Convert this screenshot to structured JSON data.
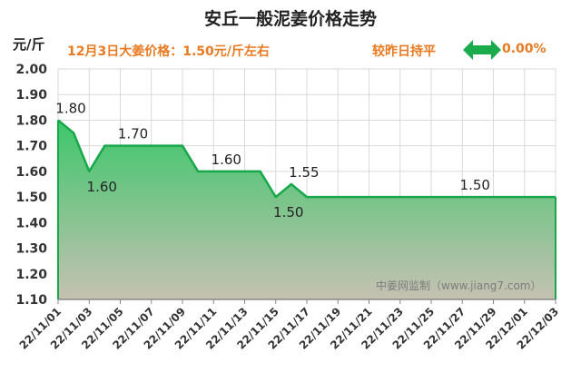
{
  "chart_data": {
    "type": "area",
    "title": "安丘一般泥姜价格走势",
    "ylabel": "元/斤",
    "ylim": [
      1.1,
      2.0
    ],
    "yticks": [
      1.1,
      1.2,
      1.3,
      1.4,
      1.5,
      1.6,
      1.7,
      1.8,
      1.9,
      2.0
    ],
    "xticks": [
      "22/11/01",
      "22/11/03",
      "22/11/05",
      "22/11/07",
      "22/11/09",
      "22/11/11",
      "22/11/13",
      "22/11/15",
      "22/11/17",
      "22/11/19",
      "22/11/21",
      "22/11/23",
      "22/11/25",
      "22/11/27",
      "22/11/29",
      "22/12/01",
      "22/12/03"
    ],
    "x": [
      "22/11/01",
      "22/11/02",
      "22/11/03",
      "22/11/04",
      "22/11/05",
      "22/11/06",
      "22/11/07",
      "22/11/08",
      "22/11/09",
      "22/11/10",
      "22/11/11",
      "22/11/12",
      "22/11/13",
      "22/11/14",
      "22/11/15",
      "22/11/16",
      "22/11/17",
      "22/11/18",
      "22/11/19",
      "22/11/20",
      "22/11/21",
      "22/11/22",
      "22/11/23",
      "22/11/24",
      "22/11/25",
      "22/11/26",
      "22/11/27",
      "22/11/28",
      "22/11/29",
      "22/11/30",
      "22/12/01",
      "22/12/02",
      "22/12/03"
    ],
    "values": [
      1.8,
      1.75,
      1.6,
      1.7,
      1.7,
      1.7,
      1.7,
      1.7,
      1.7,
      1.6,
      1.6,
      1.6,
      1.6,
      1.6,
      1.5,
      1.55,
      1.5,
      1.5,
      1.5,
      1.5,
      1.5,
      1.5,
      1.5,
      1.5,
      1.5,
      1.5,
      1.5,
      1.5,
      1.5,
      1.5,
      1.5,
      1.5,
      1.5
    ],
    "data_labels": [
      {
        "index": 0,
        "text": "1.80",
        "pos": "above"
      },
      {
        "index": 2,
        "text": "1.60",
        "pos": "below"
      },
      {
        "index": 4,
        "text": "1.70",
        "pos": "above"
      },
      {
        "index": 10,
        "text": "1.60",
        "pos": "above"
      },
      {
        "index": 14,
        "text": "1.50",
        "pos": "below"
      },
      {
        "index": 15,
        "text": "1.55",
        "pos": "above"
      },
      {
        "index": 26,
        "text": "1.50",
        "pos": "above"
      }
    ],
    "grid": true,
    "colors": {
      "line": "#17a84a",
      "fill_top": "#3dc76a",
      "fill_bottom": "#c5c1b2",
      "grid": "#d9d9d9",
      "info": "#e87a22",
      "arrow": "#1aab4c"
    }
  },
  "header": {
    "info_text": "12月3日大姜价格：1.50元/斤左右",
    "status_text": "较昨日持平",
    "change_text": "0.00%",
    "arrow_icon": "double-arrow-icon"
  },
  "watermark": "中姜网监制（www.jiang7.com）"
}
